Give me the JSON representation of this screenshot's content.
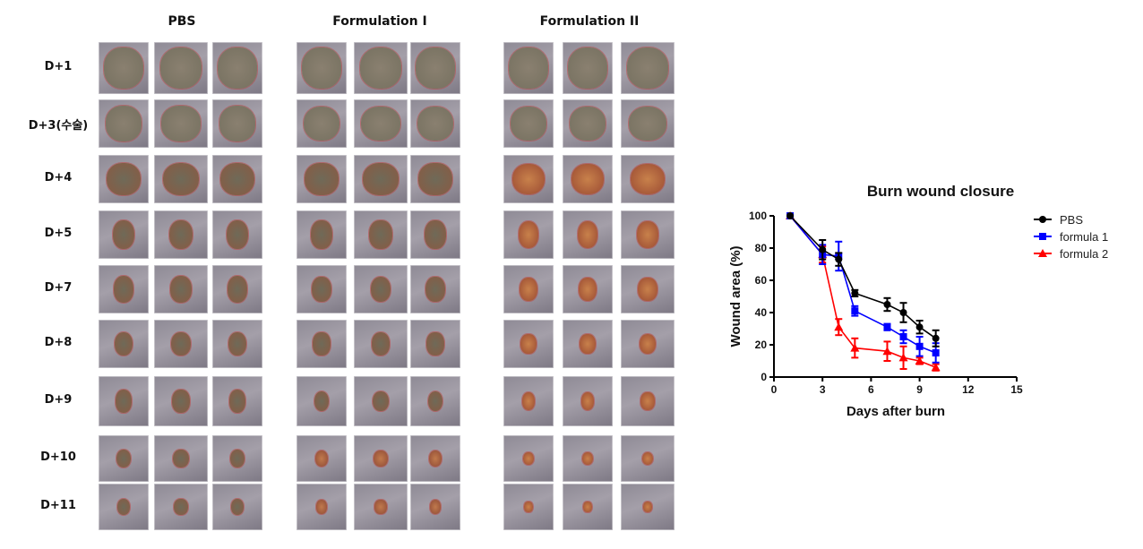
{
  "figure": {
    "groups": [
      {
        "name": "PBS"
      },
      {
        "name": "Formulation I"
      },
      {
        "name": "Formulation II"
      }
    ],
    "rows": [
      "D+1",
      "D+3(수술)",
      "D+4",
      "D+5",
      "D+7",
      "D+8",
      "D+9",
      "D+10",
      "D+11"
    ],
    "photos_per_group": 3
  },
  "chart_data": {
    "type": "line",
    "title": "Burn wound closure",
    "xlabel": "Days after burn",
    "ylabel": "Wound area (%)",
    "xlim": [
      0,
      15
    ],
    "ylim": [
      0,
      100
    ],
    "xticks": [
      0,
      3,
      6,
      9,
      12,
      15
    ],
    "yticks": [
      0,
      20,
      40,
      60,
      80,
      100
    ],
    "grid": false,
    "legend_position": "top-right",
    "x": [
      1,
      3,
      4,
      5,
      7,
      8,
      9,
      10
    ],
    "series": [
      {
        "name": "PBS",
        "color": "#000000",
        "marker": "circle",
        "values": [
          100,
          79,
          73,
          52,
          45,
          40,
          31,
          24
        ],
        "errors": [
          0,
          6,
          4,
          2,
          4,
          6,
          4,
          5
        ]
      },
      {
        "name": "formula 1",
        "color": "#0000ff",
        "marker": "square",
        "values": [
          100,
          76,
          75,
          41,
          31,
          25,
          19,
          15
        ],
        "errors": [
          0,
          6,
          9,
          3,
          2,
          4,
          6,
          6
        ]
      },
      {
        "name": "formula 2",
        "color": "#ff0000",
        "marker": "triangle",
        "values": [
          100,
          76,
          31,
          18,
          16,
          12,
          10,
          6
        ],
        "errors": [
          0,
          5,
          5,
          6,
          6,
          7,
          2,
          2
        ]
      }
    ]
  }
}
